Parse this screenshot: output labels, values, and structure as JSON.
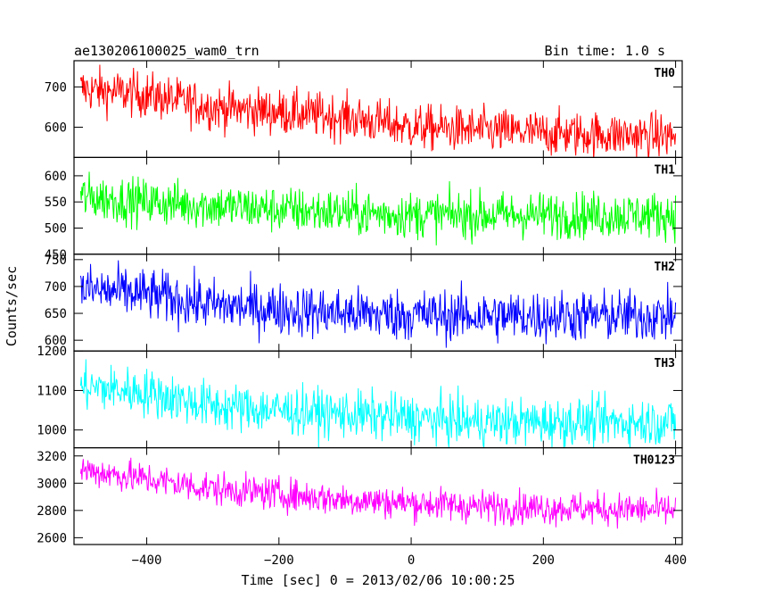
{
  "chart_data": {
    "type": "line",
    "title": "ae130206100025_wam0_trn",
    "title_right": "Bin time: 1.0 s",
    "xlabel": "Time [sec] 0 = 2013/02/06 10:00:25",
    "ylabel": "Counts/sec",
    "xlim": [
      -510,
      410
    ],
    "x_ticks": [
      -400,
      -200,
      0,
      200,
      400
    ],
    "x_tick_labels": [
      "−400",
      "−200",
      "0",
      "200",
      "400"
    ],
    "bin_time": 1.0,
    "x_start": -500,
    "x_end": 400,
    "grid": false,
    "panels": [
      {
        "name": "TH0",
        "color": "#ff0000",
        "ylim": [
          525,
          765
        ],
        "y_ticks": [
          600,
          700
        ],
        "y_tick_labels": [
          "600",
          "700"
        ],
        "trend": [
          [
            -500,
            695
          ],
          [
            -400,
            680
          ],
          [
            -300,
            650
          ],
          [
            -100,
            625
          ],
          [
            0,
            600
          ],
          [
            200,
            585
          ],
          [
            400,
            578
          ]
        ],
        "noise_sd": 28
      },
      {
        "name": "TH1",
        "color": "#00ff00",
        "ylim": [
          450,
          635
        ],
        "y_ticks": [
          450,
          500,
          550,
          600
        ],
        "y_tick_labels": [
          "450",
          "500",
          "550",
          "600"
        ],
        "trend": [
          [
            -500,
            560
          ],
          [
            -400,
            550
          ],
          [
            -200,
            535
          ],
          [
            0,
            525
          ],
          [
            200,
            525
          ],
          [
            400,
            525
          ]
        ],
        "noise_sd": 22
      },
      {
        "name": "TH2",
        "color": "#0000ff",
        "ylim": [
          580,
          760
        ],
        "y_ticks": [
          600,
          650,
          700,
          750
        ],
        "y_tick_labels": [
          "600",
          "650",
          "700",
          "750"
        ],
        "trend": [
          [
            -500,
            695
          ],
          [
            -400,
            685
          ],
          [
            -300,
            665
          ],
          [
            -100,
            650
          ],
          [
            100,
            645
          ],
          [
            400,
            645
          ]
        ],
        "noise_sd": 24
      },
      {
        "name": "TH3",
        "color": "#00ffff",
        "ylim": [
          955,
          1200
        ],
        "y_ticks": [
          1000,
          1100,
          1200
        ],
        "y_tick_labels": [
          "1000",
          "1100",
          "1200"
        ],
        "trend": [
          [
            -500,
            1110
          ],
          [
            -400,
            1095
          ],
          [
            -300,
            1060
          ],
          [
            -100,
            1040
          ],
          [
            100,
            1020
          ],
          [
            400,
            1020
          ]
        ],
        "noise_sd": 30
      },
      {
        "name": "TH0123",
        "color": "#ff00ff",
        "ylim": [
          2550,
          3260
        ],
        "y_ticks": [
          2600,
          2800,
          3000,
          3200
        ],
        "y_tick_labels": [
          "2600",
          "2800",
          "3000",
          "3200"
        ],
        "trend": [
          [
            -500,
            3100
          ],
          [
            -400,
            3030
          ],
          [
            -300,
            2960
          ],
          [
            -100,
            2880
          ],
          [
            100,
            2830
          ],
          [
            400,
            2800
          ]
        ],
        "noise_sd": 60
      }
    ]
  }
}
